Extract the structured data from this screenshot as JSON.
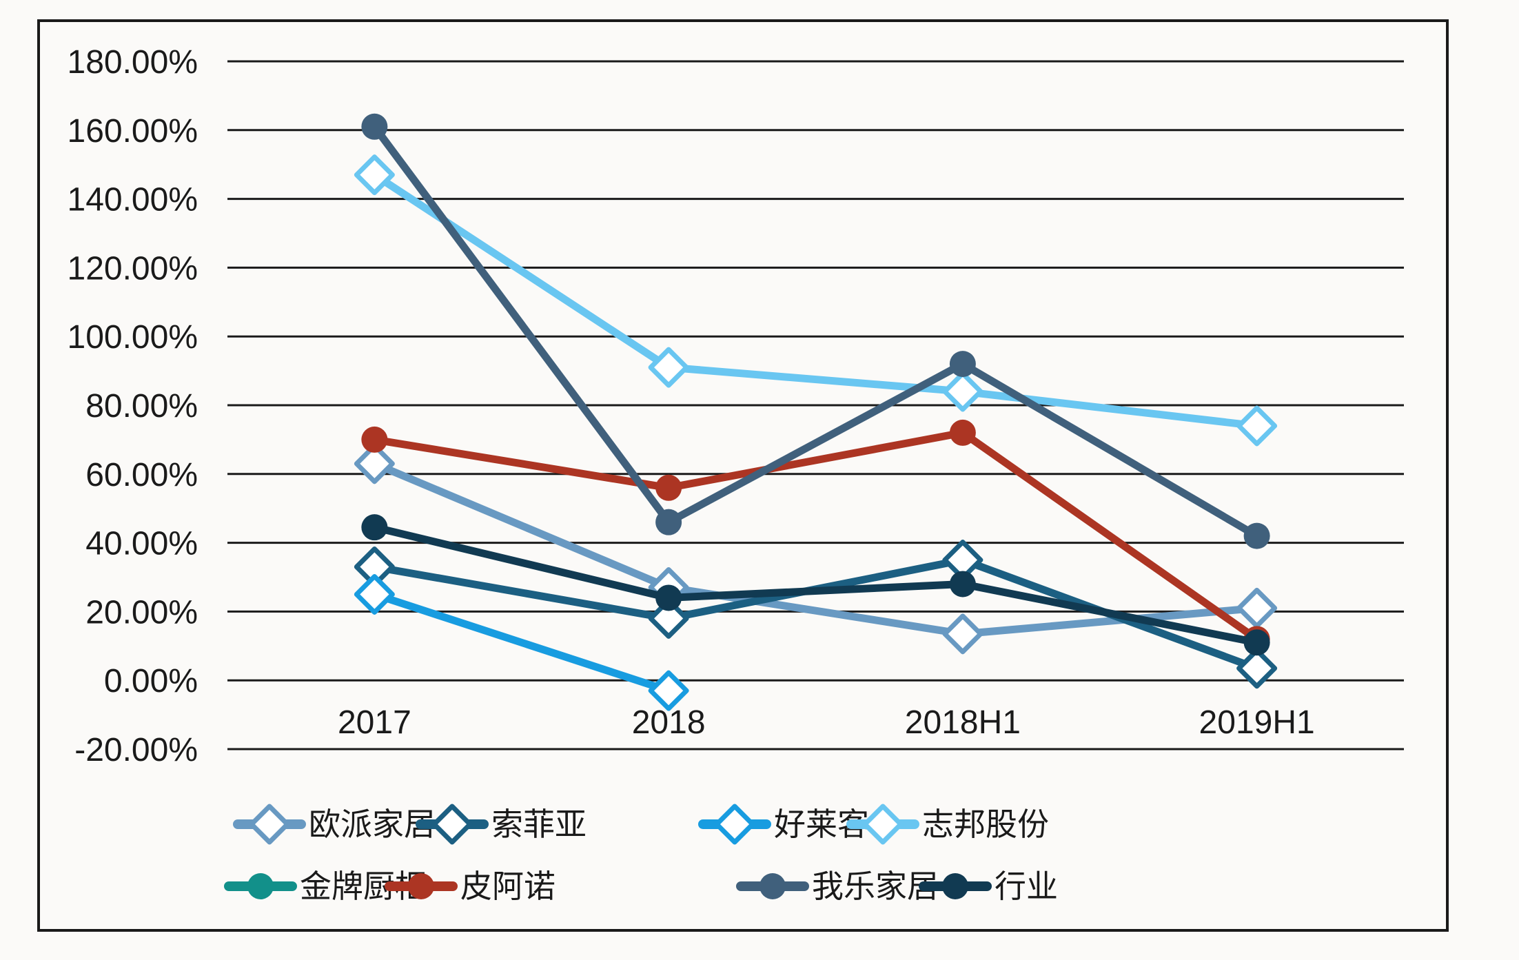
{
  "chart_data": {
    "type": "line",
    "title": "",
    "categories": [
      "2017",
      "2018",
      "2018H1",
      "2019H1"
    ],
    "y_axis": {
      "min": -20,
      "max": 180,
      "step": 20,
      "format": "percent",
      "tick_labels": [
        "180.00%",
        "160.00%",
        "140.00%",
        "120.00%",
        "100.00%",
        "80.00%",
        "60.00%",
        "40.00%",
        "20.00%",
        "0.00%",
        "-20.00%"
      ]
    },
    "grid": true,
    "legend_position": "bottom",
    "series": [
      {
        "id": "oupai",
        "name": "欧派家居",
        "color": "#6899C2",
        "marker": "diamond",
        "values": [
          63,
          27,
          13.5,
          21
        ]
      },
      {
        "id": "suofeiya",
        "name": "索菲亚",
        "color": "#1C5F82",
        "marker": "diamond",
        "values": [
          33,
          18,
          35,
          3.5
        ]
      },
      {
        "id": "holaike",
        "name": "好莱客",
        "color": "#189CE0",
        "marker": "diamond",
        "values": [
          25,
          -3,
          null,
          null
        ]
      },
      {
        "id": "zhibang",
        "name": "志邦股份",
        "color": "#69C6F1",
        "marker": "diamond",
        "values": [
          147,
          91,
          84,
          74
        ]
      },
      {
        "id": "jinpai",
        "name": "金牌厨柜",
        "color": "#12908A",
        "marker": "circle",
        "values": [
          null,
          null,
          null,
          null
        ]
      },
      {
        "id": "pianuo",
        "name": "皮阿诺",
        "color": "#AC3523",
        "marker": "circle",
        "values": [
          70,
          56,
          72,
          12
        ]
      },
      {
        "id": "wole",
        "name": "我乐家居",
        "color": "#40607C",
        "marker": "circle",
        "values": [
          161,
          46,
          92,
          42
        ]
      },
      {
        "id": "hangye",
        "name": "行业",
        "color": "#113A52",
        "marker": "circle",
        "values": [
          44.5,
          24,
          28,
          11
        ]
      }
    ]
  }
}
